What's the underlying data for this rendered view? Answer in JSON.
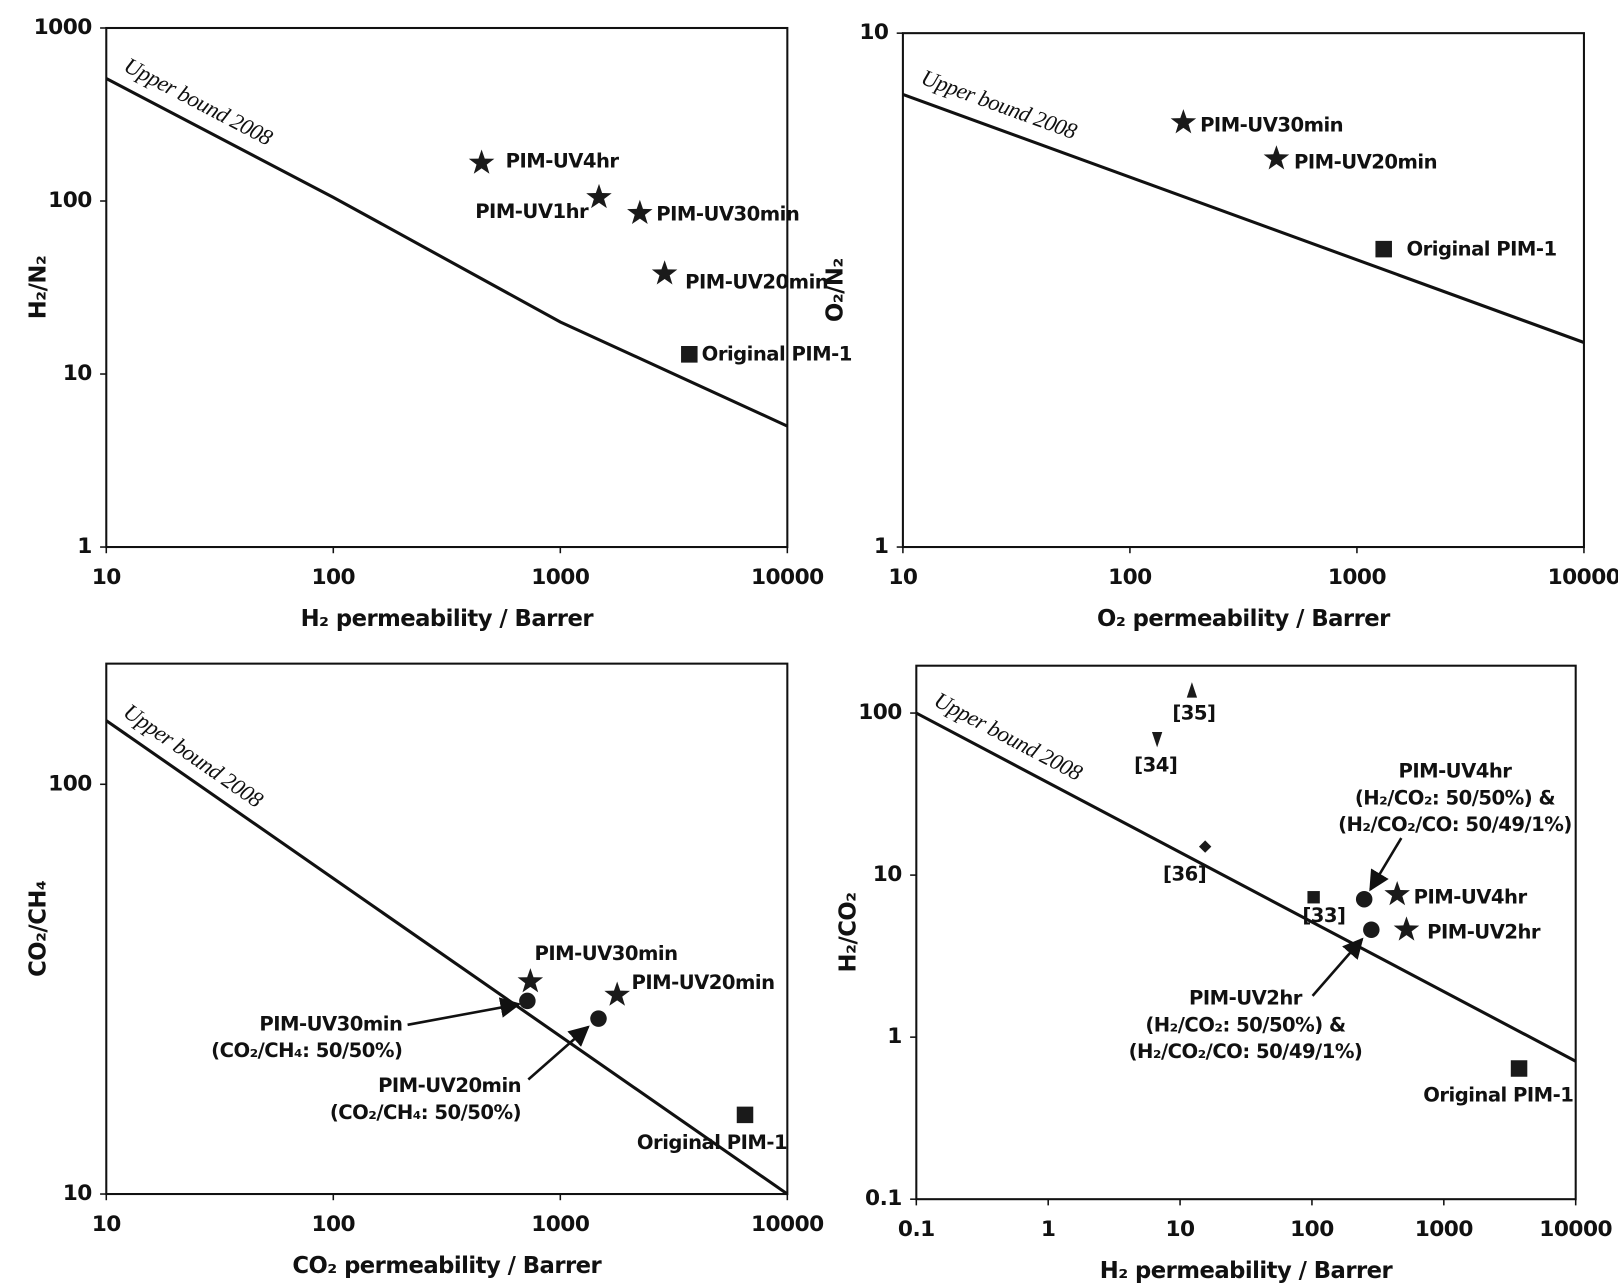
{
  "chart_data": [
    {
      "type": "scatter",
      "xscale": "log",
      "yscale": "log",
      "color": "#1a1a1a",
      "xlabel": "H₂ permeability / Barrer",
      "ylabel": "H₂/N₂",
      "xlim": [
        10,
        10000
      ],
      "ylim": [
        1,
        1000
      ],
      "xticks": [
        10,
        100,
        1000,
        10000
      ],
      "yticks": [
        1,
        10,
        100,
        1000
      ],
      "upper_bound": {
        "label": "Upper bound 2008",
        "x": [
          10,
          100,
          1000,
          10000
        ],
        "values": [
          510,
          105,
          20,
          5
        ]
      },
      "series": [
        {
          "name": "PIM-UV4hr",
          "marker": "star",
          "x": [
            450
          ],
          "values": [
            166
          ]
        },
        {
          "name": "PIM-UV1hr",
          "marker": "star",
          "x": [
            1480
          ],
          "values": [
            105
          ]
        },
        {
          "name": "PIM-UV30min",
          "marker": "star",
          "x": [
            2240
          ],
          "values": [
            85
          ]
        },
        {
          "name": "PIM-UV20min",
          "marker": "star",
          "x": [
            2880
          ],
          "values": [
            38
          ]
        },
        {
          "name": "Original PIM-1",
          "marker": "square",
          "x": [
            3700
          ],
          "values": [
            13
          ]
        }
      ]
    },
    {
      "type": "scatter",
      "xscale": "log",
      "yscale": "log",
      "color": "#1a1a1a",
      "xlabel": "O₂ permeability / Barrer",
      "ylabel": "O₂/N₂",
      "xlim": [
        10,
        10000
      ],
      "ylim": [
        1,
        10
      ],
      "xticks": [
        10,
        100,
        1000,
        10000
      ],
      "yticks": [
        1,
        10
      ],
      "upper_bound": {
        "label": "Upper bound 2008",
        "x": [
          10,
          10000
        ],
        "values": [
          7.6,
          2.5
        ]
      },
      "series": [
        {
          "name": "PIM-UV30min",
          "marker": "star",
          "x": [
            172
          ],
          "values": [
            6.7
          ]
        },
        {
          "name": "PIM-UV20min",
          "marker": "star",
          "x": [
            442
          ],
          "values": [
            5.7
          ]
        },
        {
          "name": "Original PIM-1",
          "marker": "square",
          "x": [
            1312
          ],
          "values": [
            3.8
          ]
        }
      ]
    },
    {
      "type": "scatter",
      "xscale": "log",
      "yscale": "log",
      "color": "#1a1a1a",
      "xlabel": "CO₂ permeability / Barrer",
      "ylabel": "CO₂/CH₄",
      "xlim": [
        10,
        10000
      ],
      "ylim": [
        10,
        197
      ],
      "xticks": [
        10,
        100,
        1000,
        10000
      ],
      "yticks": [
        10,
        100
      ],
      "upper_bound": {
        "label": "Upper bound 2008",
        "x": [
          10,
          10000
        ],
        "values": [
          143,
          10
        ]
      },
      "series": [
        {
          "name": "PIM-UV30min",
          "marker": "star",
          "x": [
            738
          ],
          "values": [
            33
          ]
        },
        {
          "name": "PIM-UV20min",
          "marker": "star",
          "x": [
            1780
          ],
          "values": [
            30.6
          ]
        },
        {
          "name": "PIM-UV30min",
          "marker": "circle",
          "x": [
            716
          ],
          "values": [
            29.6
          ],
          "notes": [
            "(CO₂/CH₄: 50/50%)"
          ]
        },
        {
          "name": "PIM-UV20min",
          "marker": "circle",
          "x": [
            1473
          ],
          "values": [
            26.8
          ],
          "notes": [
            "(CO₂/CH₄: 50/50%)"
          ]
        },
        {
          "name": "Original PIM-1",
          "marker": "square",
          "x": [
            6510
          ],
          "values": [
            15.6
          ]
        }
      ]
    },
    {
      "type": "scatter",
      "xscale": "log",
      "yscale": "log",
      "color": "#1a1a1a",
      "xlabel": "H₂ permeability / Barrer",
      "ylabel": "H₂/CO₂",
      "xlim": [
        0.1,
        10000
      ],
      "ylim": [
        0.1,
        196
      ],
      "xticks": [
        0.1,
        1,
        10,
        100,
        1000,
        10000
      ],
      "yticks": [
        0.1,
        1,
        10,
        100
      ],
      "upper_bound": {
        "label": "Upper bound 2008",
        "x": [
          0.1,
          10000
        ],
        "values": [
          100,
          0.71
        ]
      },
      "series": [
        {
          "name": "[35]",
          "marker": "triangle-up",
          "x": [
            12.3
          ],
          "values": [
            138
          ]
        },
        {
          "name": "[34]",
          "marker": "triangle-down",
          "x": [
            6.7
          ],
          "values": [
            69
          ]
        },
        {
          "name": "[36]",
          "marker": "diamond",
          "x": [
            15.5
          ],
          "values": [
            15
          ]
        },
        {
          "name": "[33]",
          "marker": "small-square",
          "x": [
            103
          ],
          "values": [
            7.3
          ]
        },
        {
          "name": "PIM-UV4hr",
          "marker": "circle",
          "x": [
            249
          ],
          "values": [
            7.1
          ],
          "notes": [
            "(H₂/CO₂: 50/50%) &",
            "(H₂/CO₂/CO: 50/49/1%)"
          ]
        },
        {
          "name": "PIM-UV4hr",
          "marker": "star",
          "x": [
            443
          ],
          "values": [
            7.6
          ]
        },
        {
          "name": "PIM-UV2hr",
          "marker": "circle",
          "x": [
            282
          ],
          "values": [
            4.6
          ],
          "notes": [
            "(H₂/CO₂: 50/50%) &",
            "(H₂/CO₂/CO: 50/49/1%)"
          ]
        },
        {
          "name": "PIM-UV2hr",
          "marker": "star",
          "x": [
            521
          ],
          "values": [
            4.6
          ]
        },
        {
          "name": "Original PIM-1",
          "marker": "square",
          "x": [
            3720
          ],
          "values": [
            0.64
          ]
        }
      ]
    }
  ]
}
